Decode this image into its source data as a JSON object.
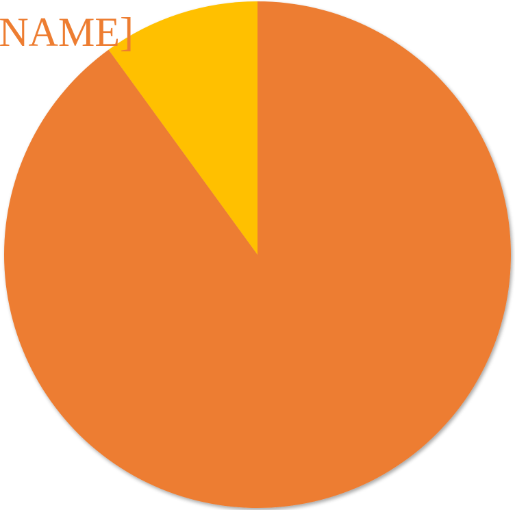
{
  "chart_data": {
    "type": "pie",
    "title": "[NAME]",
    "slices": [
      {
        "label": "",
        "value": 90,
        "color": "#ED7D31"
      },
      {
        "label": "",
        "value": 10,
        "color": "#FFC000"
      }
    ],
    "start_angle_deg": 0,
    "direction": "clockwise",
    "legend": "none"
  },
  "colors": {
    "title": "#ED7D31",
    "background": "#FFFFFF"
  }
}
